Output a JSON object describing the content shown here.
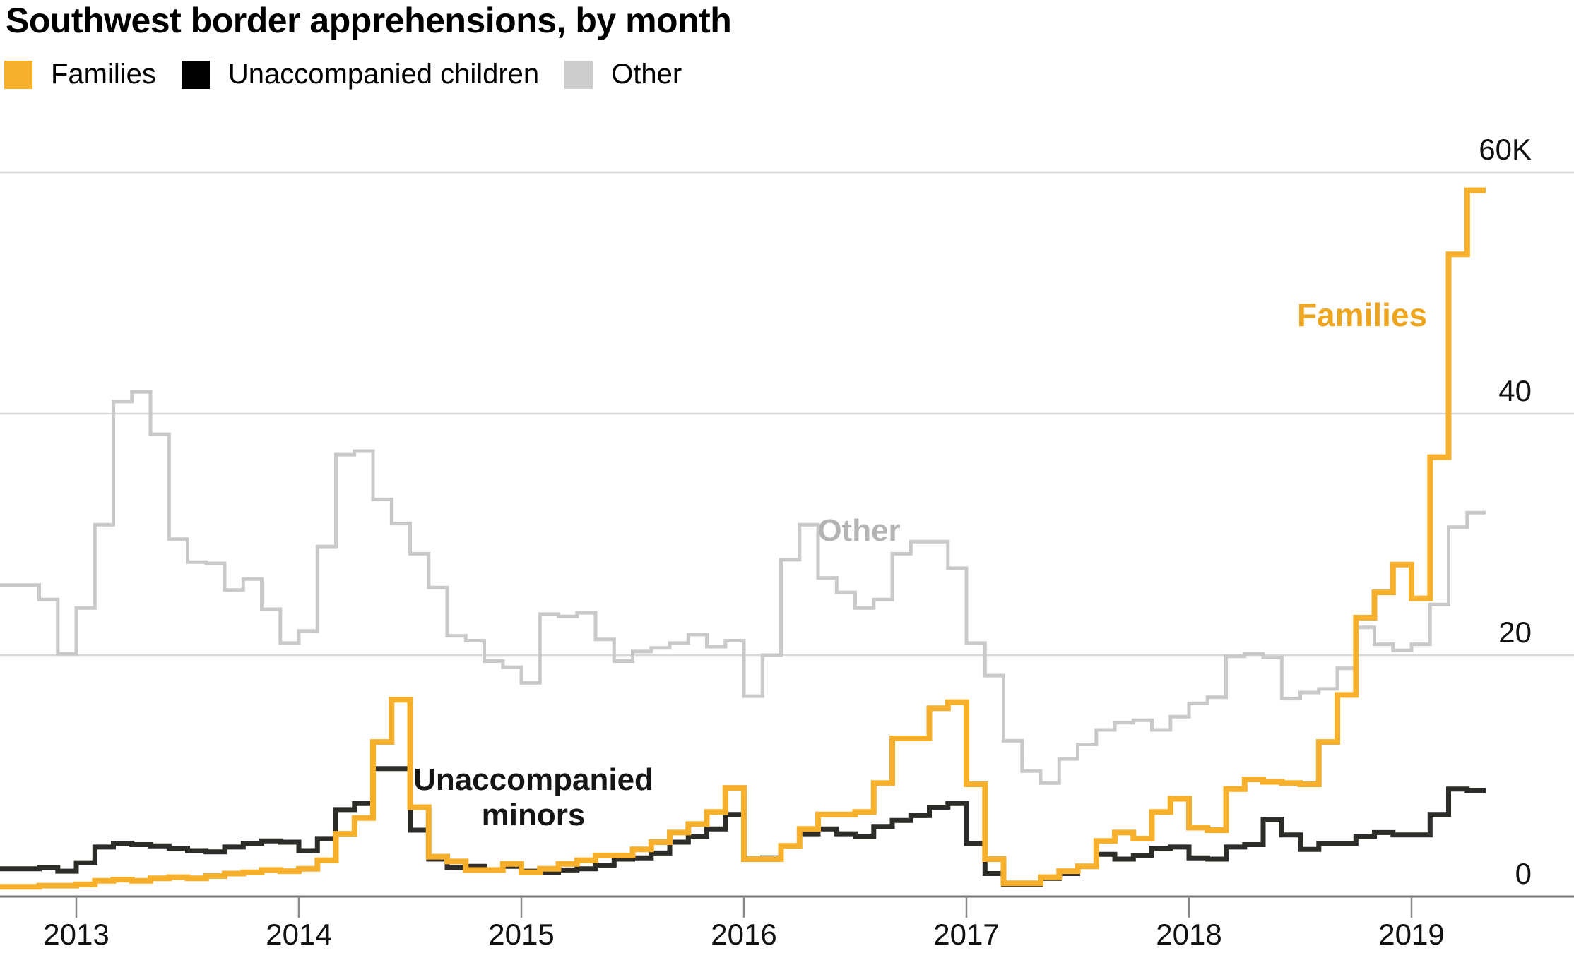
{
  "title": "Southwest border apprehensions, by month",
  "legend": {
    "items": [
      {
        "label": "Families",
        "color": "#F6B02C"
      },
      {
        "label": "Unaccompanied children",
        "color": "#000000"
      },
      {
        "label": "Other",
        "color": "#CDCDCD"
      }
    ]
  },
  "annotations": {
    "families": "Families",
    "other": "Other",
    "uac_line1": "Unaccompanied",
    "uac_line2": "minors"
  },
  "chart_data": {
    "type": "line",
    "subtype": "step-after",
    "title": "Southwest border apprehensions, by month",
    "unit": "apprehensions per month, thousands",
    "grid": true,
    "legend_position": "top-left",
    "y_axis": {
      "side": "right",
      "lim": [
        0,
        60
      ],
      "ticks": [
        {
          "label": "60K",
          "value": 60
        },
        {
          "label": "40",
          "value": 40
        },
        {
          "label": "20",
          "value": 20
        },
        {
          "label": "0",
          "value": 0
        }
      ]
    },
    "x_axis": {
      "start_month": "2012-10",
      "end_month": "2019-04",
      "tick_years": [
        "2013",
        "2014",
        "2015",
        "2016",
        "2017",
        "2018",
        "2019"
      ]
    },
    "series": [
      {
        "name": "Families",
        "color": "#F6B02C",
        "line_width": 8,
        "values": [
          0.8,
          0.9,
          0.9,
          1.0,
          1.3,
          1.4,
          1.3,
          1.5,
          1.6,
          1.5,
          1.7,
          1.9,
          2.0,
          2.2,
          2.1,
          2.3,
          3.0,
          5.2,
          6.5,
          12.8,
          16.3,
          7.4,
          3.3,
          2.9,
          2.2,
          2.2,
          2.7,
          2.0,
          2.3,
          2.7,
          3.0,
          3.4,
          3.4,
          3.9,
          4.5,
          5.3,
          6.0,
          7.0,
          9.0,
          3.1,
          3.1,
          4.2,
          5.6,
          6.8,
          6.8,
          7.0,
          9.4,
          13.1,
          13.1,
          15.6,
          16.1,
          9.3,
          3.1,
          1.1,
          1.1,
          1.6,
          2.1,
          2.5,
          4.6,
          5.3,
          4.8,
          7.0,
          8.1,
          5.7,
          5.5,
          8.9,
          9.7,
          9.5,
          9.4,
          9.3,
          12.8,
          16.7,
          23.1,
          25.2,
          27.5,
          24.7,
          36.4,
          53.2,
          58.5
        ]
      },
      {
        "name": "Unaccompanied children",
        "color": "#2E2C29",
        "line_width": 7,
        "values": [
          2.3,
          2.4,
          2.1,
          2.8,
          4.1,
          4.4,
          4.3,
          4.2,
          4.0,
          3.8,
          3.7,
          4.1,
          4.4,
          4.6,
          4.5,
          3.8,
          4.8,
          7.2,
          7.7,
          10.6,
          10.6,
          5.5,
          3.1,
          2.4,
          2.5,
          2.2,
          2.5,
          2.1,
          2.0,
          2.2,
          2.3,
          2.6,
          3.1,
          3.2,
          3.6,
          4.5,
          5.0,
          5.6,
          6.8,
          3.1,
          3.2,
          4.2,
          5.2,
          5.6,
          5.2,
          5.0,
          5.8,
          6.3,
          6.7,
          7.4,
          7.7,
          4.4,
          1.9,
          1.0,
          1.0,
          1.5,
          1.9,
          2.5,
          3.5,
          3.1,
          3.4,
          4.0,
          4.1,
          3.2,
          3.1,
          4.1,
          4.3,
          6.4,
          5.1,
          3.9,
          4.4,
          4.4,
          5.0,
          5.3,
          5.1,
          5.1,
          6.8,
          8.9,
          8.8
        ]
      },
      {
        "name": "Other",
        "color": "#C9C9C9",
        "line_width": 5,
        "values": [
          25.8,
          24.6,
          20.1,
          23.9,
          30.8,
          41.0,
          41.8,
          38.3,
          29.6,
          27.7,
          27.6,
          25.4,
          26.3,
          23.8,
          21.0,
          22.0,
          29.0,
          36.6,
          36.9,
          32.9,
          30.9,
          28.4,
          25.6,
          21.6,
          21.2,
          19.5,
          19.0,
          17.7,
          23.4,
          23.2,
          23.5,
          21.3,
          19.5,
          20.3,
          20.6,
          21.0,
          21.7,
          20.7,
          21.2,
          16.6,
          20.0,
          27.9,
          30.8,
          26.4,
          25.2,
          23.9,
          24.6,
          28.4,
          29.4,
          29.4,
          27.2,
          21.0,
          18.3,
          12.9,
          10.4,
          9.4,
          11.4,
          12.6,
          13.8,
          14.4,
          14.6,
          13.8,
          14.9,
          16.0,
          16.5,
          19.9,
          20.1,
          19.8,
          16.4,
          16.9,
          17.2,
          18.9,
          22.3,
          20.9,
          20.4,
          20.9,
          24.2,
          30.6,
          31.8
        ]
      }
    ]
  }
}
